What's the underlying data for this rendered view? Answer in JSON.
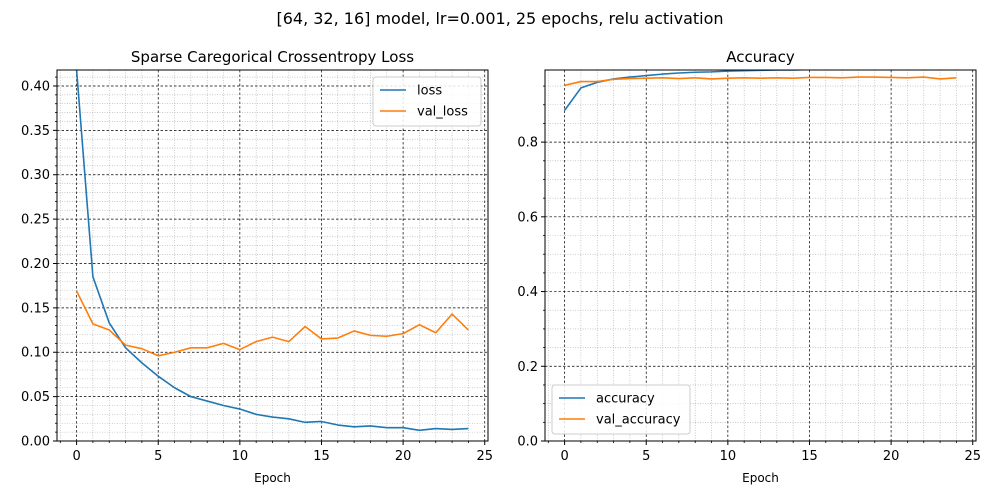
{
  "figure": {
    "suptitle": "[64, 32, 16] model, lr=0.001, 25 epochs, relu activation"
  },
  "chart_data": [
    {
      "type": "line",
      "title": "Sparse Caregorical Crossentropy Loss",
      "xlabel": "Epoch",
      "ylabel": "",
      "xlim": [
        -1.2,
        25.2
      ],
      "ylim": [
        0,
        0.418
      ],
      "xticks": [
        0,
        5,
        10,
        15,
        20,
        25
      ],
      "yticks": [
        0.0,
        0.05,
        0.1,
        0.15,
        0.2,
        0.25,
        0.3,
        0.35,
        0.4
      ],
      "ytick_labels": [
        "0.00",
        "0.05",
        "0.10",
        "0.15",
        "0.20",
        "0.25",
        "0.30",
        "0.35",
        "0.40"
      ],
      "grid": true,
      "legend": "top-right",
      "x": [
        0,
        1,
        2,
        3,
        4,
        5,
        6,
        7,
        8,
        9,
        10,
        11,
        12,
        13,
        14,
        15,
        16,
        17,
        18,
        19,
        20,
        21,
        22,
        23,
        24
      ],
      "series": [
        {
          "name": "loss",
          "color": "#1f77b4",
          "values": [
            0.418,
            0.185,
            0.133,
            0.105,
            0.088,
            0.073,
            0.06,
            0.05,
            0.045,
            0.04,
            0.036,
            0.03,
            0.027,
            0.025,
            0.021,
            0.022,
            0.018,
            0.016,
            0.017,
            0.015,
            0.015,
            0.012,
            0.014,
            0.013,
            0.014
          ]
        },
        {
          "name": "val_loss",
          "color": "#ff7f0e",
          "values": [
            0.169,
            0.132,
            0.125,
            0.108,
            0.104,
            0.096,
            0.1,
            0.105,
            0.105,
            0.11,
            0.103,
            0.112,
            0.117,
            0.112,
            0.129,
            0.115,
            0.116,
            0.124,
            0.119,
            0.118,
            0.121,
            0.131,
            0.122,
            0.143,
            0.125
          ]
        }
      ]
    },
    {
      "type": "line",
      "title": "Accuracy",
      "xlabel": "Epoch",
      "ylabel": "",
      "xlim": [
        -1.2,
        25.2
      ],
      "ylim": [
        0,
        0.993
      ],
      "xticks": [
        0,
        5,
        10,
        15,
        20,
        25
      ],
      "yticks": [
        0.0,
        0.2,
        0.4,
        0.6,
        0.8
      ],
      "ytick_labels": [
        "0.0",
        "0.2",
        "0.4",
        "0.6",
        "0.8"
      ],
      "grid": true,
      "legend": "bottom-left",
      "x": [
        0,
        1,
        2,
        3,
        4,
        5,
        6,
        7,
        8,
        9,
        10,
        11,
        12,
        13,
        14,
        15,
        16,
        17,
        18,
        19,
        20,
        21,
        22,
        23,
        24
      ],
      "series": [
        {
          "name": "accuracy",
          "color": "#1f77b4",
          "values": [
            0.885,
            0.945,
            0.96,
            0.969,
            0.974,
            0.978,
            0.982,
            0.985,
            0.987,
            0.988,
            0.99,
            0.991,
            0.992,
            0.993,
            0.993,
            0.994,
            0.994,
            0.995,
            0.995,
            0.995,
            0.996,
            0.996,
            0.996,
            0.996,
            0.996
          ]
        },
        {
          "name": "val_accuracy",
          "color": "#ff7f0e",
          "values": [
            0.952,
            0.962,
            0.962,
            0.968,
            0.97,
            0.971,
            0.972,
            0.97,
            0.972,
            0.969,
            0.971,
            0.972,
            0.971,
            0.972,
            0.971,
            0.973,
            0.973,
            0.972,
            0.974,
            0.974,
            0.973,
            0.972,
            0.974,
            0.969,
            0.972
          ]
        }
      ]
    }
  ]
}
